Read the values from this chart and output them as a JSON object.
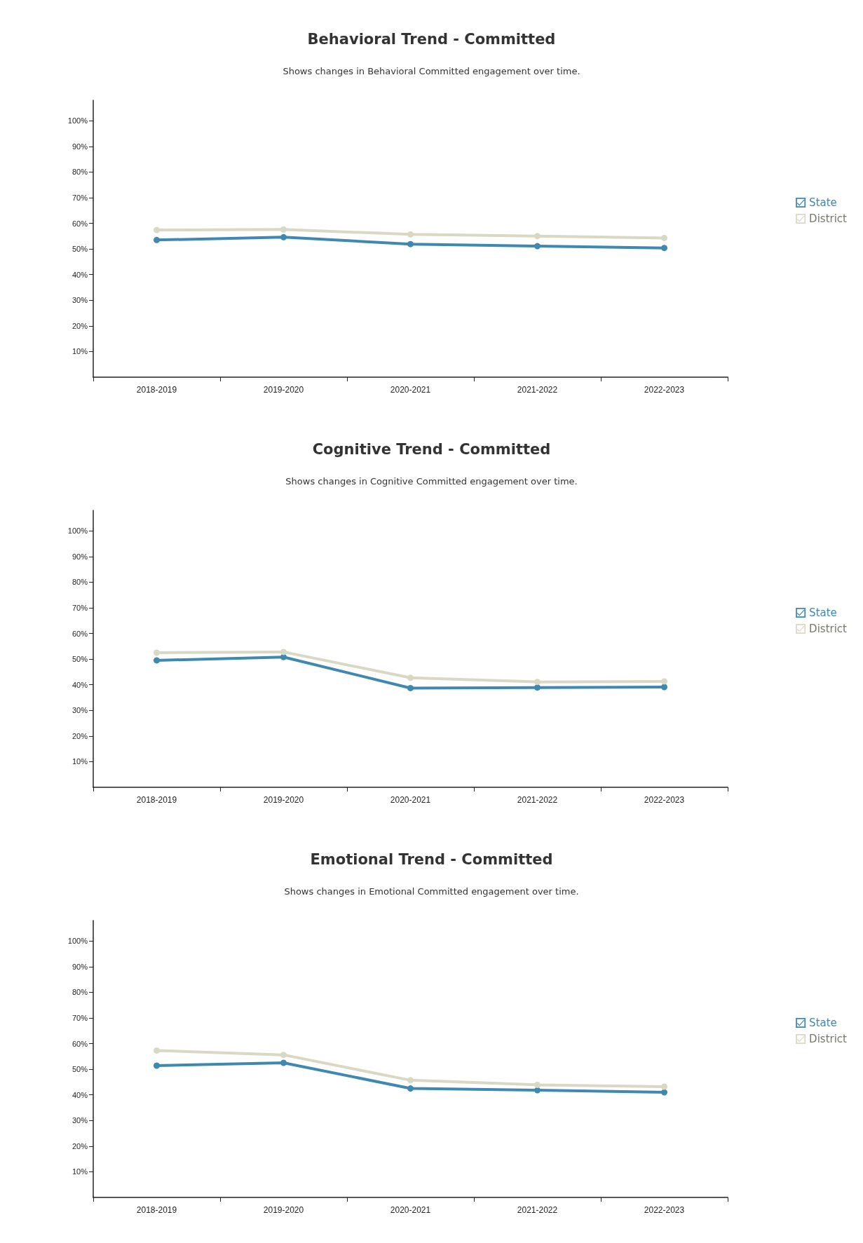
{
  "chart_data": [
    {
      "type": "line",
      "title": "Behavioral Trend - Committed",
      "subtitle": "Shows changes in Behavioral Committed engagement over time.",
      "categories": [
        "2018-2019",
        "2019-2020",
        "2020-2021",
        "2021-2022",
        "2022-2023"
      ],
      "series": [
        {
          "name": "State",
          "color": "#3f88b0",
          "values": [
            53.5,
            54.6,
            51.9,
            51.1,
            50.4
          ]
        },
        {
          "name": "District",
          "color": "#d9d8c4",
          "values": [
            57.4,
            57.6,
            55.7,
            55,
            54.3
          ]
        }
      ],
      "ylim": [
        0,
        108
      ],
      "yticks": [
        {
          "value": 10,
          "label": "10%"
        },
        {
          "value": 20,
          "label": "20%"
        },
        {
          "value": 30,
          "label": "30%"
        },
        {
          "value": 40,
          "label": "40%"
        },
        {
          "value": 50,
          "label": "50%"
        },
        {
          "value": 60,
          "label": "60%"
        },
        {
          "value": 70,
          "label": "70%"
        },
        {
          "value": 80,
          "label": "80%"
        },
        {
          "value": 90,
          "label": "90%"
        },
        {
          "value": 100,
          "label": "100%"
        }
      ],
      "grid": false,
      "legend": "right",
      "marker": "circle",
      "line_style": "solid"
    },
    {
      "type": "line",
      "title": "Cognitive Trend - Committed",
      "subtitle": "Shows changes in Cognitive Committed engagement over time.",
      "categories": [
        "2018-2019",
        "2019-2020",
        "2020-2021",
        "2021-2022",
        "2022-2023"
      ],
      "series": [
        {
          "name": "State",
          "color": "#3f88b0",
          "values": [
            49.5,
            50.8,
            38.7,
            38.9,
            39.1
          ]
        },
        {
          "name": "District",
          "color": "#d9d8c4",
          "values": [
            52.5,
            52.8,
            42.7,
            41.1,
            41.3
          ]
        }
      ],
      "ylim": [
        0,
        108
      ],
      "yticks": [
        {
          "value": 10,
          "label": "10%"
        },
        {
          "value": 20,
          "label": "20%"
        },
        {
          "value": 30,
          "label": "30%"
        },
        {
          "value": 40,
          "label": "40%"
        },
        {
          "value": 50,
          "label": "50%"
        },
        {
          "value": 60,
          "label": "60%"
        },
        {
          "value": 70,
          "label": "70%"
        },
        {
          "value": 80,
          "label": "80%"
        },
        {
          "value": 90,
          "label": "90%"
        },
        {
          "value": 100,
          "label": "100%"
        }
      ],
      "grid": false,
      "legend": "right",
      "marker": "circle",
      "line_style": "solid"
    },
    {
      "type": "line",
      "title": "Emotional Trend - Committed",
      "subtitle": "Shows changes in Emotional Committed engagement over time.",
      "categories": [
        "2018-2019",
        "2019-2020",
        "2020-2021",
        "2021-2022",
        "2022-2023"
      ],
      "series": [
        {
          "name": "State",
          "color": "#3f88b0",
          "values": [
            51.4,
            52.5,
            42.5,
            41.8,
            41
          ]
        },
        {
          "name": "District",
          "color": "#d9d8c4",
          "values": [
            57.3,
            55.6,
            45.7,
            43.9,
            43.2
          ]
        }
      ],
      "ylim": [
        0,
        108
      ],
      "yticks": [
        {
          "value": 10,
          "label": "10%"
        },
        {
          "value": 20,
          "label": "20%"
        },
        {
          "value": 30,
          "label": "30%"
        },
        {
          "value": 40,
          "label": "40%"
        },
        {
          "value": 50,
          "label": "50%"
        },
        {
          "value": 60,
          "label": "60%"
        },
        {
          "value": 70,
          "label": "70%"
        },
        {
          "value": 80,
          "label": "80%"
        },
        {
          "value": 90,
          "label": "90%"
        },
        {
          "value": 100,
          "label": "100%"
        }
      ],
      "grid": false,
      "legend": "right",
      "marker": "circle",
      "line_style": "solid"
    }
  ]
}
